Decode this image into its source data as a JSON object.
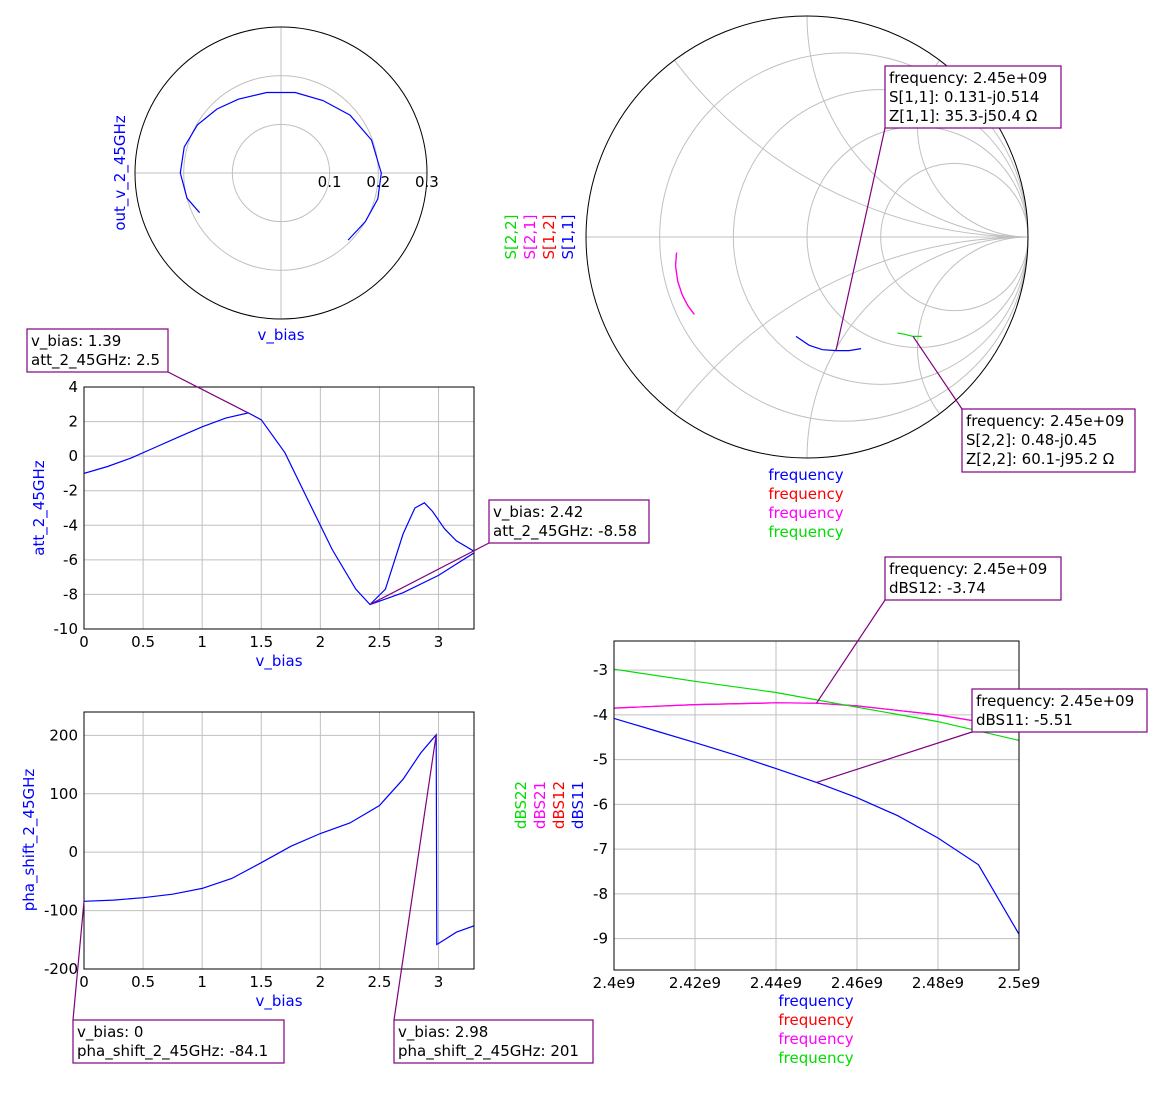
{
  "colors": {
    "S11": "#0000ff",
    "S12": "#ff0000",
    "S21": "#ff00ff",
    "S22": "#00dd00",
    "marker": "#800080",
    "axis_label": "#0000ff"
  },
  "chart_data": [
    {
      "id": "polar",
      "type": "polar",
      "radial_ticks": [
        "0.1",
        "0.2",
        "0.3"
      ],
      "r_max": 0.3,
      "xlabel": "v_bias",
      "ylabel": "out_v_2_45GHz",
      "series": [
        {
          "points": [
            [
              0.186,
              206
            ],
            [
              0.2,
              195
            ],
            [
              0.207,
              180
            ],
            [
              0.206,
              165
            ],
            [
              0.198,
              150
            ],
            [
              0.186,
              135
            ],
            [
              0.175,
              120
            ],
            [
              0.168,
              100
            ],
            [
              0.168,
              80
            ],
            [
              0.172,
              60
            ],
            [
              0.185,
              40
            ],
            [
              0.198,
              20
            ],
            [
              0.206,
              0
            ],
            [
              0.206,
              -15
            ],
            [
              0.2,
              -30
            ],
            [
              0.195,
              -45
            ]
          ]
        }
      ]
    },
    {
      "id": "smith_s",
      "type": "smith",
      "legend": [
        "S[2,2]",
        "S[2,1]",
        "S[1,2]",
        "S[1,1]"
      ],
      "xlabels": [
        "frequency",
        "frequency",
        "frequency",
        "frequency"
      ],
      "series": [
        {
          "name": "S[1,1]",
          "points": [
            [
              -0.05,
              -0.45
            ],
            [
              0.01,
              -0.49
            ],
            [
              0.07,
              -0.51
            ],
            [
              0.131,
              -0.514
            ],
            [
              0.19,
              -0.514
            ],
            [
              0.245,
              -0.505
            ]
          ]
        },
        {
          "name": "S[1,2]",
          "points": [
            [
              -0.59,
              -0.07
            ],
            [
              -0.595,
              -0.13
            ],
            [
              -0.585,
              -0.2
            ],
            [
              -0.565,
              -0.26
            ],
            [
              -0.54,
              -0.31
            ],
            [
              -0.51,
              -0.35
            ]
          ]
        },
        {
          "name": "S[2,1]",
          "points": [
            [
              -0.59,
              -0.07
            ],
            [
              -0.595,
              -0.13
            ],
            [
              -0.585,
              -0.2
            ],
            [
              -0.565,
              -0.26
            ],
            [
              -0.54,
              -0.31
            ],
            [
              -0.51,
              -0.35
            ]
          ]
        },
        {
          "name": "S[2,2]",
          "points": [
            [
              0.41,
              -0.435
            ],
            [
              0.44,
              -0.44
            ],
            [
              0.46,
              -0.445
            ],
            [
              0.48,
              -0.45
            ],
            [
              0.5,
              -0.45
            ],
            [
              0.52,
              -0.45
            ]
          ]
        }
      ],
      "markers": [
        {
          "lines": [
            "frequency: 2.45e+09",
            "S[1,1]: 0.131-j0.514",
            "Z[1,1]: 35.3-j50.4 Ω"
          ],
          "at": [
            0.131,
            -0.514
          ]
        },
        {
          "lines": [
            "frequency: 2.45e+09",
            "S[2,2]: 0.48-j0.45",
            "Z[2,2]: 60.1-j95.2 Ω"
          ],
          "at": [
            0.48,
            -0.45
          ]
        }
      ]
    },
    {
      "id": "att",
      "type": "line",
      "xlabel": "v_bias",
      "ylabel": "att_2_45GHz",
      "xlim": [
        0,
        3.3
      ],
      "ylim": [
        -10,
        4
      ],
      "xticks": [
        0,
        0.5,
        1,
        1.5,
        2,
        2.5,
        3
      ],
      "xticklabels": [
        "0",
        "0.5",
        "1",
        "1.5",
        "2",
        "2.5",
        "3"
      ],
      "yticks": [
        -10,
        -8,
        -6,
        -4,
        -2,
        0,
        2,
        4
      ],
      "yticklabels": [
        "-10",
        "-8",
        "-6",
        "-4",
        "-2",
        "0",
        "2",
        "4"
      ],
      "series": [
        {
          "x": [
            0,
            0.2,
            0.4,
            0.6,
            0.8,
            1.0,
            1.2,
            1.39,
            1.5,
            1.7,
            1.9,
            2.1,
            2.3,
            2.42,
            2.55,
            2.7,
            2.8,
            2.88,
            2.95,
            3.05,
            3.15,
            3.3
          ],
          "y": [
            -1.0,
            -0.6,
            -0.1,
            0.5,
            1.1,
            1.7,
            2.2,
            2.5,
            2.1,
            0.2,
            -2.6,
            -5.4,
            -7.7,
            -8.58,
            -7.7,
            -4.5,
            -3.0,
            -2.7,
            -3.2,
            -4.2,
            -4.9,
            -5.5
          ]
        },
        {
          "x": [
            2.42,
            2.7,
            3.0,
            3.3
          ],
          "y": [
            -8.58,
            -7.9,
            -6.9,
            -5.6
          ]
        }
      ],
      "markers": [
        {
          "lines": [
            "v_bias: 1.39",
            "att_2_45GHz: 2.5"
          ],
          "at": [
            1.39,
            2.5
          ]
        },
        {
          "lines": [
            "v_bias: 2.42",
            "att_2_45GHz: -8.58"
          ],
          "at": [
            2.42,
            -8.58
          ]
        }
      ]
    },
    {
      "id": "pha",
      "type": "line",
      "xlabel": "v_bias",
      "ylabel": "pha_shift_2_45GHz",
      "xlim": [
        0,
        3.3
      ],
      "ylim": [
        -200,
        240
      ],
      "xticks": [
        0,
        0.5,
        1,
        1.5,
        2,
        2.5,
        3
      ],
      "xticklabels": [
        "0",
        "0.5",
        "1",
        "1.5",
        "2",
        "2.5",
        "3"
      ],
      "yticks": [
        -200,
        -100,
        0,
        100,
        200
      ],
      "yticklabels": [
        "-200",
        "-100",
        "0",
        "100",
        "200"
      ],
      "series": [
        {
          "x": [
            0,
            0.25,
            0.5,
            0.75,
            1.0,
            1.25,
            1.5,
            1.75,
            2.0,
            2.25,
            2.5,
            2.7,
            2.85,
            2.98,
            2.985,
            3.05,
            3.15,
            3.3
          ],
          "y": [
            -84.1,
            -82,
            -78,
            -72,
            -62,
            -45,
            -18,
            10,
            32,
            50,
            80,
            125,
            170,
            201,
            -158,
            -150,
            -137,
            -126
          ]
        }
      ],
      "markers": [
        {
          "lines": [
            "v_bias: 0",
            "pha_shift_2_45GHz: -84.1"
          ],
          "at": [
            0,
            -84.1
          ]
        },
        {
          "lines": [
            "v_bias: 2.98",
            "pha_shift_2_45GHz: 201"
          ],
          "at": [
            2.98,
            201
          ]
        }
      ]
    },
    {
      "id": "dbs",
      "type": "line",
      "legend": [
        "dBS22",
        "dBS21",
        "dBS12",
        "dBS11"
      ],
      "xlabels": [
        "frequency",
        "frequency",
        "frequency",
        "frequency"
      ],
      "xlim": [
        2400000000.0,
        2500000000.0
      ],
      "ylim": [
        -9.7,
        -2.35
      ],
      "xticks": [
        2400000000.0,
        2420000000.0,
        2440000000.0,
        2460000000.0,
        2480000000.0,
        2500000000.0
      ],
      "xticklabels": [
        "2.4e9",
        "2.42e9",
        "2.44e9",
        "2.46e9",
        "2.48e9",
        "2.5e9"
      ],
      "yticks": [
        -9,
        -8,
        -7,
        -6,
        -5,
        -4,
        -3
      ],
      "yticklabels": [
        "-9",
        "-8",
        "-7",
        "-6",
        "-5",
        "-4",
        "-3"
      ],
      "series": [
        {
          "name": "dBS11",
          "x": [
            2400000000.0,
            2410000000.0,
            2420000000.0,
            2430000000.0,
            2440000000.0,
            2450000000.0,
            2460000000.0,
            2470000000.0,
            2480000000.0,
            2490000000.0,
            2500000000.0
          ],
          "y": [
            -4.08,
            -4.35,
            -4.62,
            -4.9,
            -5.2,
            -5.51,
            -5.85,
            -6.25,
            -6.75,
            -7.35,
            -8.9
          ]
        },
        {
          "name": "dBS12",
          "x": [
            2400000000.0,
            2420000000.0,
            2440000000.0,
            2450000000.0,
            2460000000.0,
            2480000000.0,
            2500000000.0
          ],
          "y": [
            -3.85,
            -3.77,
            -3.73,
            -3.74,
            -3.8,
            -4.0,
            -4.3
          ]
        },
        {
          "name": "dBS21",
          "x": [
            2400000000.0,
            2420000000.0,
            2440000000.0,
            2450000000.0,
            2460000000.0,
            2480000000.0,
            2500000000.0
          ],
          "y": [
            -3.85,
            -3.77,
            -3.73,
            -3.74,
            -3.8,
            -4.0,
            -4.3
          ]
        },
        {
          "name": "dBS22",
          "x": [
            2400000000.0,
            2420000000.0,
            2440000000.0,
            2460000000.0,
            2480000000.0,
            2500000000.0
          ],
          "y": [
            -2.98,
            -3.25,
            -3.5,
            -3.83,
            -4.15,
            -4.57
          ]
        }
      ],
      "markers": [
        {
          "lines": [
            "frequency: 2.45e+09",
            "dBS12: -3.74"
          ],
          "at": [
            2450000000.0,
            -3.74
          ]
        },
        {
          "lines": [
            "frequency: 2.45e+09",
            "dBS11: -5.51"
          ],
          "at": [
            2450000000.0,
            -5.51
          ]
        }
      ]
    }
  ]
}
